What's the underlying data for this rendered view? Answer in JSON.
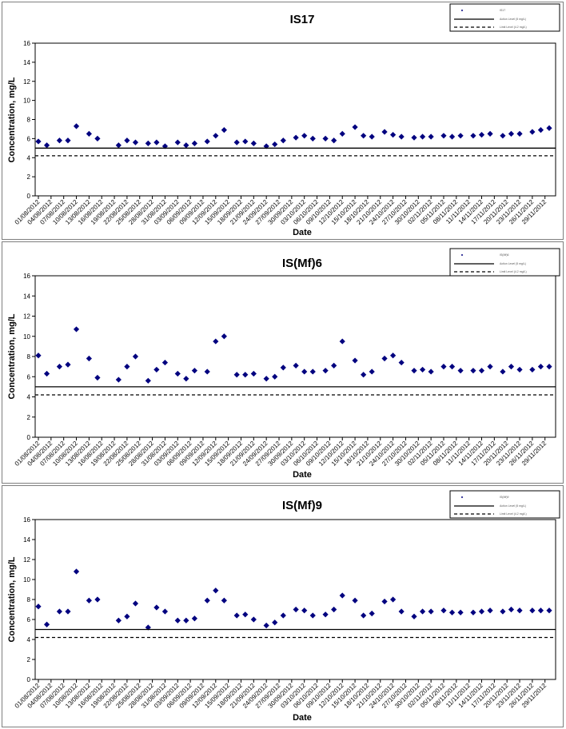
{
  "chart_data": [
    {
      "type": "scatter",
      "title": "IS17",
      "xlabel": "Date",
      "ylabel": "Concentration, mg/L",
      "ylim": [
        0,
        16
      ],
      "yticks": [
        0,
        2,
        4,
        6,
        8,
        10,
        12,
        14,
        16
      ],
      "x_tick_labels": [
        "01/08/2012",
        "04/08/2012",
        "07/08/2012",
        "10/08/2012",
        "13/08/2012",
        "16/08/2012",
        "19/08/2012",
        "22/08/2012",
        "25/08/2012",
        "28/08/2012",
        "31/08/2012",
        "03/09/2012",
        "06/09/2012",
        "09/09/2012",
        "12/09/2012",
        "15/09/2012",
        "18/09/2012",
        "21/09/2012",
        "24/09/2012",
        "27/09/2012",
        "30/09/2012",
        "03/10/2012",
        "06/10/2012",
        "09/10/2012",
        "12/10/2012",
        "15/10/2012",
        "18/10/2012",
        "21/10/2012",
        "24/10/2012",
        "27/10/2012",
        "30/10/2012",
        "02/11/2012",
        "05/11/2012",
        "08/11/2012",
        "11/11/2012",
        "14/11/2012",
        "17/11/2012",
        "20/11/2012",
        "23/11/2012",
        "26/11/2012",
        "29/11/2012"
      ],
      "legend_position": "top-right",
      "legend": [
        "IS17",
        "Action Level (5 mg/L)",
        "Limit Level (4.2 mg/L)"
      ],
      "series": [
        {
          "name": "IS17",
          "marker": "diamond",
          "color": "#00007f",
          "points": [
            [
              "01/08/2012",
              5.7
            ],
            [
              "03/08/2012",
              5.3
            ],
            [
              "06/08/2012",
              5.8
            ],
            [
              "08/08/2012",
              5.8
            ],
            [
              "10/08/2012",
              7.3
            ],
            [
              "13/08/2012",
              6.5
            ],
            [
              "15/08/2012",
              6.0
            ],
            [
              "20/08/2012",
              5.3
            ],
            [
              "22/08/2012",
              5.8
            ],
            [
              "24/08/2012",
              5.6
            ],
            [
              "27/08/2012",
              5.5
            ],
            [
              "29/08/2012",
              5.6
            ],
            [
              "31/08/2012",
              5.2
            ],
            [
              "03/09/2012",
              5.6
            ],
            [
              "05/09/2012",
              5.3
            ],
            [
              "07/09/2012",
              5.5
            ],
            [
              "10/09/2012",
              5.7
            ],
            [
              "12/09/2012",
              6.3
            ],
            [
              "14/09/2012",
              6.9
            ],
            [
              "17/09/2012",
              5.6
            ],
            [
              "19/09/2012",
              5.7
            ],
            [
              "21/09/2012",
              5.5
            ],
            [
              "24/09/2012",
              5.2
            ],
            [
              "26/09/2012",
              5.4
            ],
            [
              "28/09/2012",
              5.8
            ],
            [
              "01/10/2012",
              6.1
            ],
            [
              "03/10/2012",
              6.3
            ],
            [
              "05/10/2012",
              6.0
            ],
            [
              "08/10/2012",
              6.0
            ],
            [
              "10/10/2012",
              5.8
            ],
            [
              "12/10/2012",
              6.5
            ],
            [
              "15/10/2012",
              7.2
            ],
            [
              "17/10/2012",
              6.3
            ],
            [
              "19/10/2012",
              6.2
            ],
            [
              "22/10/2012",
              6.7
            ],
            [
              "24/10/2012",
              6.4
            ],
            [
              "26/10/2012",
              6.2
            ],
            [
              "29/10/2012",
              6.1
            ],
            [
              "31/10/2012",
              6.2
            ],
            [
              "02/11/2012",
              6.2
            ],
            [
              "05/11/2012",
              6.3
            ],
            [
              "07/11/2012",
              6.2
            ],
            [
              "09/11/2012",
              6.3
            ],
            [
              "12/11/2012",
              6.3
            ],
            [
              "14/11/2012",
              6.4
            ],
            [
              "16/11/2012",
              6.5
            ],
            [
              "19/11/2012",
              6.3
            ],
            [
              "21/11/2012",
              6.5
            ],
            [
              "23/11/2012",
              6.5
            ],
            [
              "26/11/2012",
              6.7
            ],
            [
              "28/11/2012",
              6.9
            ],
            [
              "30/11/2012",
              7.1
            ]
          ]
        },
        {
          "name": "Action Level (5 mg/L)",
          "type": "hline",
          "value": 5.0,
          "style": "solid",
          "color": "#000000"
        },
        {
          "name": "Limit Level (4.2 mg/L)",
          "type": "hline",
          "value": 4.2,
          "style": "dashed",
          "color": "#000000"
        }
      ]
    },
    {
      "type": "scatter",
      "title": "IS(Mf)6",
      "xlabel": "Date",
      "ylabel": "Concentration, mg/L",
      "ylim": [
        0,
        16
      ],
      "yticks": [
        0,
        2,
        4,
        6,
        8,
        10,
        12,
        14,
        16
      ],
      "x_tick_labels": [
        "01/08/2012",
        "04/08/2012",
        "07/08/2012",
        "10/08/2012",
        "13/08/2012",
        "16/08/2012",
        "19/08/2012",
        "22/08/2012",
        "25/08/2012",
        "28/08/2012",
        "31/08/2012",
        "03/09/2012",
        "06/09/2012",
        "09/09/2012",
        "12/09/2012",
        "15/09/2012",
        "18/09/2012",
        "21/09/2012",
        "24/09/2012",
        "27/09/2012",
        "30/09/2012",
        "03/10/2012",
        "06/10/2012",
        "09/10/2012",
        "12/10/2012",
        "15/10/2012",
        "18/10/2012",
        "21/10/2012",
        "24/10/2012",
        "27/10/2012",
        "30/10/2012",
        "02/11/2012",
        "05/11/2012",
        "08/11/2012",
        "11/11/2012",
        "14/11/2012",
        "17/11/2012",
        "20/11/2012",
        "23/11/2012",
        "26/11/2012",
        "29/11/2012"
      ],
      "legend_position": "top-right",
      "legend": [
        "IS(Mf)6",
        "Action Level (5 mg/L)",
        "Limit Level (4.2 mg/L)"
      ],
      "series": [
        {
          "name": "IS(Mf)6",
          "marker": "diamond",
          "color": "#00007f",
          "points": [
            [
              "01/08/2012",
              8.1
            ],
            [
              "03/08/2012",
              6.3
            ],
            [
              "06/08/2012",
              7.0
            ],
            [
              "08/08/2012",
              7.2
            ],
            [
              "10/08/2012",
              10.7
            ],
            [
              "13/08/2012",
              7.8
            ],
            [
              "15/08/2012",
              5.9
            ],
            [
              "20/08/2012",
              5.7
            ],
            [
              "22/08/2012",
              7.0
            ],
            [
              "24/08/2012",
              8.0
            ],
            [
              "27/08/2012",
              5.6
            ],
            [
              "29/08/2012",
              6.7
            ],
            [
              "31/08/2012",
              7.4
            ],
            [
              "03/09/2012",
              6.3
            ],
            [
              "05/09/2012",
              5.8
            ],
            [
              "07/09/2012",
              6.6
            ],
            [
              "10/09/2012",
              6.5
            ],
            [
              "12/09/2012",
              9.5
            ],
            [
              "14/09/2012",
              10.0
            ],
            [
              "17/09/2012",
              6.2
            ],
            [
              "19/09/2012",
              6.2
            ],
            [
              "21/09/2012",
              6.3
            ],
            [
              "24/09/2012",
              5.8
            ],
            [
              "26/09/2012",
              6.0
            ],
            [
              "28/09/2012",
              6.9
            ],
            [
              "01/10/2012",
              7.1
            ],
            [
              "03/10/2012",
              6.5
            ],
            [
              "05/10/2012",
              6.5
            ],
            [
              "08/10/2012",
              6.6
            ],
            [
              "10/10/2012",
              7.1
            ],
            [
              "12/10/2012",
              9.5
            ],
            [
              "15/10/2012",
              7.6
            ],
            [
              "17/10/2012",
              6.2
            ],
            [
              "19/10/2012",
              6.5
            ],
            [
              "22/10/2012",
              7.8
            ],
            [
              "24/10/2012",
              8.1
            ],
            [
              "26/10/2012",
              7.4
            ],
            [
              "29/10/2012",
              6.6
            ],
            [
              "31/10/2012",
              6.7
            ],
            [
              "02/11/2012",
              6.5
            ],
            [
              "05/11/2012",
              7.0
            ],
            [
              "07/11/2012",
              7.0
            ],
            [
              "09/11/2012",
              6.6
            ],
            [
              "12/11/2012",
              6.6
            ],
            [
              "14/11/2012",
              6.6
            ],
            [
              "16/11/2012",
              7.0
            ],
            [
              "19/11/2012",
              6.5
            ],
            [
              "21/11/2012",
              7.0
            ],
            [
              "23/11/2012",
              6.7
            ],
            [
              "26/11/2012",
              6.7
            ],
            [
              "28/11/2012",
              7.0
            ],
            [
              "30/11/2012",
              7.0
            ]
          ]
        },
        {
          "name": "Action Level (5 mg/L)",
          "type": "hline",
          "value": 5.0,
          "style": "solid",
          "color": "#000000"
        },
        {
          "name": "Limit Level (4.2 mg/L)",
          "type": "hline",
          "value": 4.2,
          "style": "dashed",
          "color": "#000000"
        }
      ]
    },
    {
      "type": "scatter",
      "title": "IS(Mf)9",
      "xlabel": "Date",
      "ylabel": "Concentration, mg/L",
      "ylim": [
        0,
        16
      ],
      "yticks": [
        0,
        2,
        4,
        6,
        8,
        10,
        12,
        14,
        16
      ],
      "x_tick_labels": [
        "01/08/2012",
        "04/08/2012",
        "07/08/2012",
        "10/08/2012",
        "13/08/2012",
        "16/08/2012",
        "19/08/2012",
        "22/08/2012",
        "25/08/2012",
        "28/08/2012",
        "31/08/2012",
        "03/09/2012",
        "06/09/2012",
        "09/09/2012",
        "12/09/2012",
        "15/09/2012",
        "18/09/2012",
        "21/09/2012",
        "24/09/2012",
        "27/09/2012",
        "30/09/2012",
        "03/10/2012",
        "06/10/2012",
        "09/10/2012",
        "12/10/2012",
        "15/10/2012",
        "18/10/2012",
        "21/10/2012",
        "24/10/2012",
        "27/10/2012",
        "30/10/2012",
        "02/11/2012",
        "05/11/2012",
        "08/11/2012",
        "11/11/2012",
        "14/11/2012",
        "17/11/2012",
        "20/11/2012",
        "23/11/2012",
        "26/11/2012",
        "29/11/2012"
      ],
      "legend_position": "top-right",
      "legend": [
        "IS(Mf)9",
        "Action Level (5 mg/L)",
        "Limit Level (4.2 mg/L)"
      ],
      "series": [
        {
          "name": "IS(Mf)9",
          "marker": "diamond",
          "color": "#00007f",
          "points": [
            [
              "01/08/2012",
              7.3
            ],
            [
              "03/08/2012",
              5.5
            ],
            [
              "06/08/2012",
              6.8
            ],
            [
              "08/08/2012",
              6.8
            ],
            [
              "10/08/2012",
              10.8
            ],
            [
              "13/08/2012",
              7.9
            ],
            [
              "15/08/2012",
              8.0
            ],
            [
              "20/08/2012",
              5.9
            ],
            [
              "22/08/2012",
              6.3
            ],
            [
              "24/08/2012",
              7.6
            ],
            [
              "27/08/2012",
              5.2
            ],
            [
              "29/08/2012",
              7.2
            ],
            [
              "31/08/2012",
              6.8
            ],
            [
              "03/09/2012",
              5.9
            ],
            [
              "05/09/2012",
              5.9
            ],
            [
              "07/09/2012",
              6.1
            ],
            [
              "10/09/2012",
              7.9
            ],
            [
              "12/09/2012",
              8.9
            ],
            [
              "14/09/2012",
              7.9
            ],
            [
              "17/09/2012",
              6.4
            ],
            [
              "19/09/2012",
              6.5
            ],
            [
              "21/09/2012",
              6.0
            ],
            [
              "24/09/2012",
              5.4
            ],
            [
              "26/09/2012",
              5.7
            ],
            [
              "28/09/2012",
              6.4
            ],
            [
              "01/10/2012",
              7.0
            ],
            [
              "03/10/2012",
              6.9
            ],
            [
              "05/10/2012",
              6.4
            ],
            [
              "08/10/2012",
              6.5
            ],
            [
              "10/10/2012",
              7.0
            ],
            [
              "12/10/2012",
              8.4
            ],
            [
              "15/10/2012",
              7.9
            ],
            [
              "17/10/2012",
              6.4
            ],
            [
              "19/10/2012",
              6.6
            ],
            [
              "22/10/2012",
              7.8
            ],
            [
              "24/10/2012",
              8.0
            ],
            [
              "26/10/2012",
              6.8
            ],
            [
              "29/10/2012",
              6.3
            ],
            [
              "31/10/2012",
              6.8
            ],
            [
              "02/11/2012",
              6.8
            ],
            [
              "05/11/2012",
              6.9
            ],
            [
              "07/11/2012",
              6.7
            ],
            [
              "09/11/2012",
              6.7
            ],
            [
              "12/11/2012",
              6.7
            ],
            [
              "14/11/2012",
              6.8
            ],
            [
              "16/11/2012",
              6.9
            ],
            [
              "19/11/2012",
              6.8
            ],
            [
              "21/11/2012",
              7.0
            ],
            [
              "23/11/2012",
              6.9
            ],
            [
              "26/11/2012",
              6.9
            ],
            [
              "28/11/2012",
              6.9
            ],
            [
              "30/11/2012",
              6.9
            ]
          ]
        },
        {
          "name": "Action Level (5 mg/L)",
          "type": "hline",
          "value": 5.0,
          "style": "solid",
          "color": "#000000"
        },
        {
          "name": "Limit Level (4.2 mg/L)",
          "type": "hline",
          "value": 4.2,
          "style": "dashed",
          "color": "#000000"
        }
      ]
    }
  ]
}
